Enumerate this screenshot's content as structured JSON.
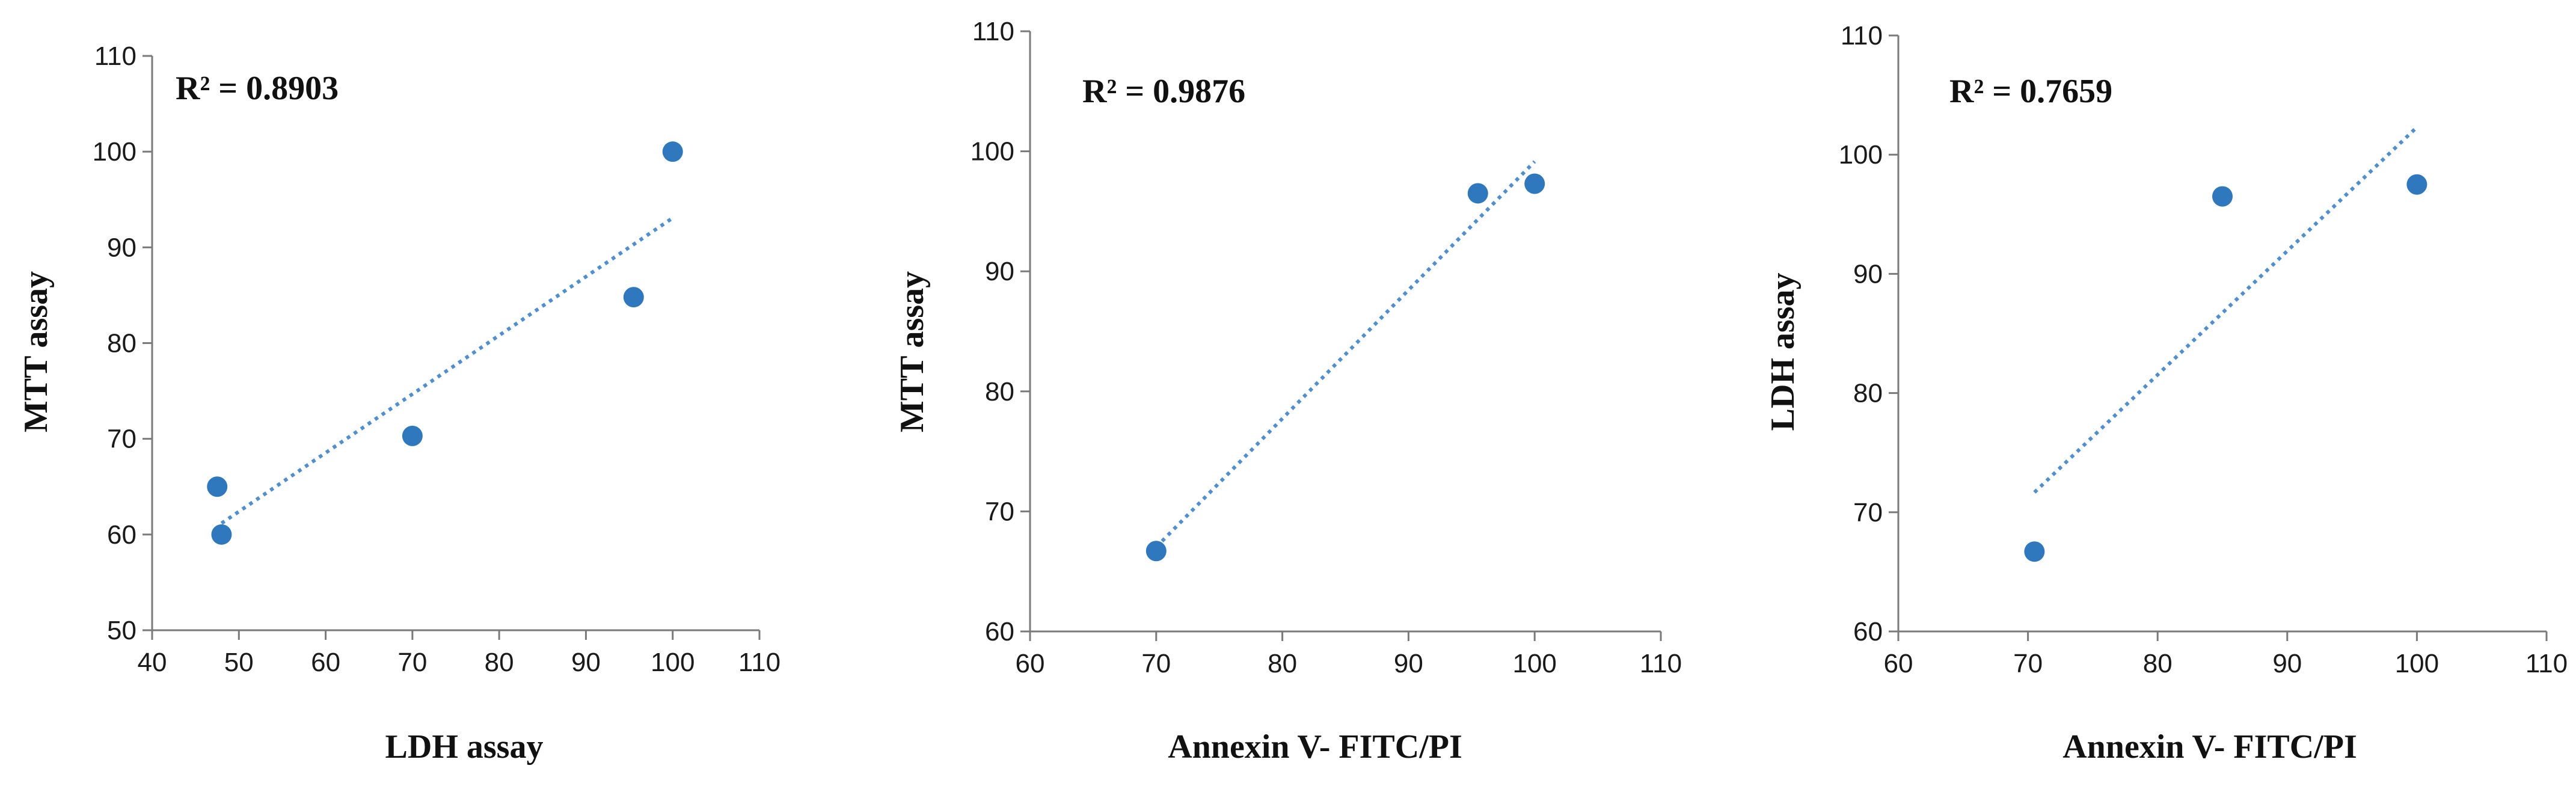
{
  "chart_data": [
    {
      "type": "scatter",
      "xlabel": "LDH assay",
      "ylabel": "MTT assay",
      "annotation": "R² = 0.8903",
      "xlim": [
        40,
        110
      ],
      "ylim": [
        50,
        110
      ],
      "xticks": [
        40,
        50,
        60,
        70,
        80,
        90,
        100,
        110
      ],
      "yticks": [
        50,
        60,
        70,
        80,
        90,
        100,
        110
      ],
      "grid": false,
      "trendline": "linear",
      "trend_x": [
        48,
        100
      ],
      "series": [
        {
          "x": [
            47.5,
            48,
            70,
            95.5,
            100
          ],
          "y": [
            65,
            60,
            70.3,
            84.8,
            100
          ]
        }
      ],
      "point_color": "#2f78bd",
      "trend_color": "#4f8fd0"
    },
    {
      "type": "scatter",
      "xlabel": "Annexin V- FITC/PI",
      "ylabel": "MTT  assay",
      "annotation": "R² = 0.9876",
      "xlim": [
        60,
        110
      ],
      "ylim": [
        60,
        110
      ],
      "xticks": [
        60,
        70,
        80,
        90,
        100,
        110
      ],
      "yticks": [
        60,
        70,
        80,
        90,
        100,
        110
      ],
      "grid": false,
      "trendline": "linear",
      "trend_x": [
        70,
        100
      ],
      "series": [
        {
          "x": [
            70,
            95.5,
            100
          ],
          "y": [
            66.7,
            96.5,
            97.3
          ]
        }
      ],
      "point_color": "#2f78bd",
      "trend_color": "#4f8fd0"
    },
    {
      "type": "scatter",
      "xlabel": "Annexin V- FITC/PI",
      "ylabel": "LDH assay",
      "annotation": "R² = 0.7659",
      "xlim": [
        60,
        110
      ],
      "ylim": [
        60,
        110
      ],
      "xticks": [
        60,
        70,
        80,
        90,
        100,
        110
      ],
      "yticks": [
        60,
        70,
        80,
        90,
        100,
        110
      ],
      "grid": false,
      "trendline": "linear",
      "trend_x": [
        70.5,
        100
      ],
      "series": [
        {
          "x": [
            70.5,
            85,
            100
          ],
          "y": [
            66.7,
            96.5,
            97.5
          ]
        }
      ],
      "point_color": "#2f78bd",
      "trend_color": "#4f8fd0"
    }
  ]
}
